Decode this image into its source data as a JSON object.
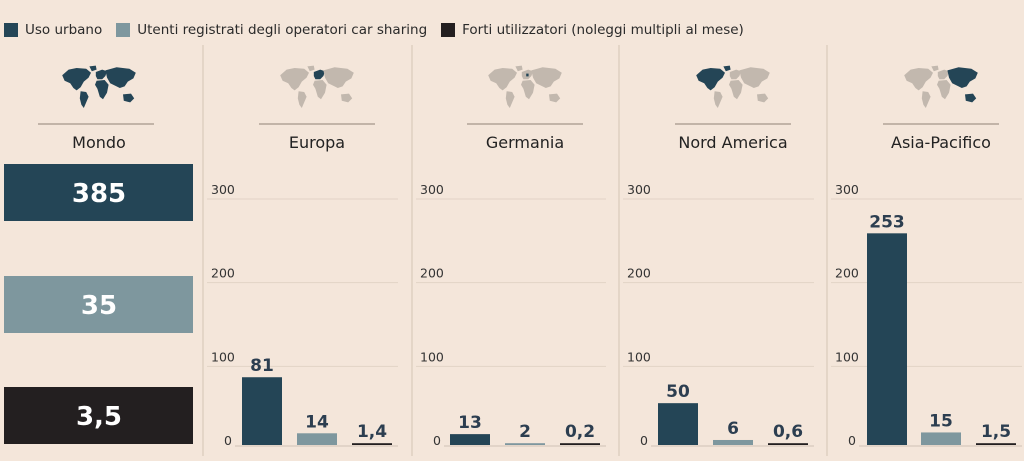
{
  "colors": {
    "urban": "#244556",
    "registered": "#7e979e",
    "heavy": "#231f20",
    "map_highlight": "#244556",
    "map_base": "#c2b8ae",
    "background": "#f4e6da"
  },
  "legend": [
    {
      "label": "Uso urbano",
      "color": "#244556"
    },
    {
      "label": "Utenti registrati degli operatori car sharing",
      "color": "#7e979e"
    },
    {
      "label": "Forti utilizzatori (noleggi multipli al mese)",
      "color": "#231f20"
    }
  ],
  "chart_data": {
    "type": "bar",
    "unit_note": "",
    "series_names": [
      "Uso urbano",
      "Utenti registrati degli operatori car sharing",
      "Forti utilizzatori (noleggi multipli al mese)"
    ],
    "summary": {
      "title": "Mondo",
      "icon": "world-map-full",
      "values": [
        385,
        35,
        3.5
      ],
      "labels": [
        "385",
        "35",
        "3,5"
      ]
    },
    "panels": [
      {
        "title": "Europa",
        "icon": "world-map-europe",
        "values": [
          81,
          14,
          1.4
        ],
        "labels": [
          "81",
          "14",
          "1,4"
        ]
      },
      {
        "title": "Germania",
        "icon": "world-map-germany",
        "values": [
          13,
          2,
          0.2
        ],
        "labels": [
          "13",
          "2",
          "0,2"
        ]
      },
      {
        "title": "Nord America",
        "icon": "world-map-north-america",
        "values": [
          50,
          6,
          0.6
        ],
        "labels": [
          "50",
          "6",
          "0,6"
        ]
      },
      {
        "title": "Asia-Pacifico",
        "icon": "world-map-asia-pacific",
        "values": [
          253,
          15,
          1.5
        ],
        "labels": [
          "253",
          "15",
          "1,5"
        ]
      }
    ],
    "ylim": [
      0,
      300
    ],
    "yticks": [
      0,
      100,
      200,
      300
    ],
    "grid": true
  }
}
